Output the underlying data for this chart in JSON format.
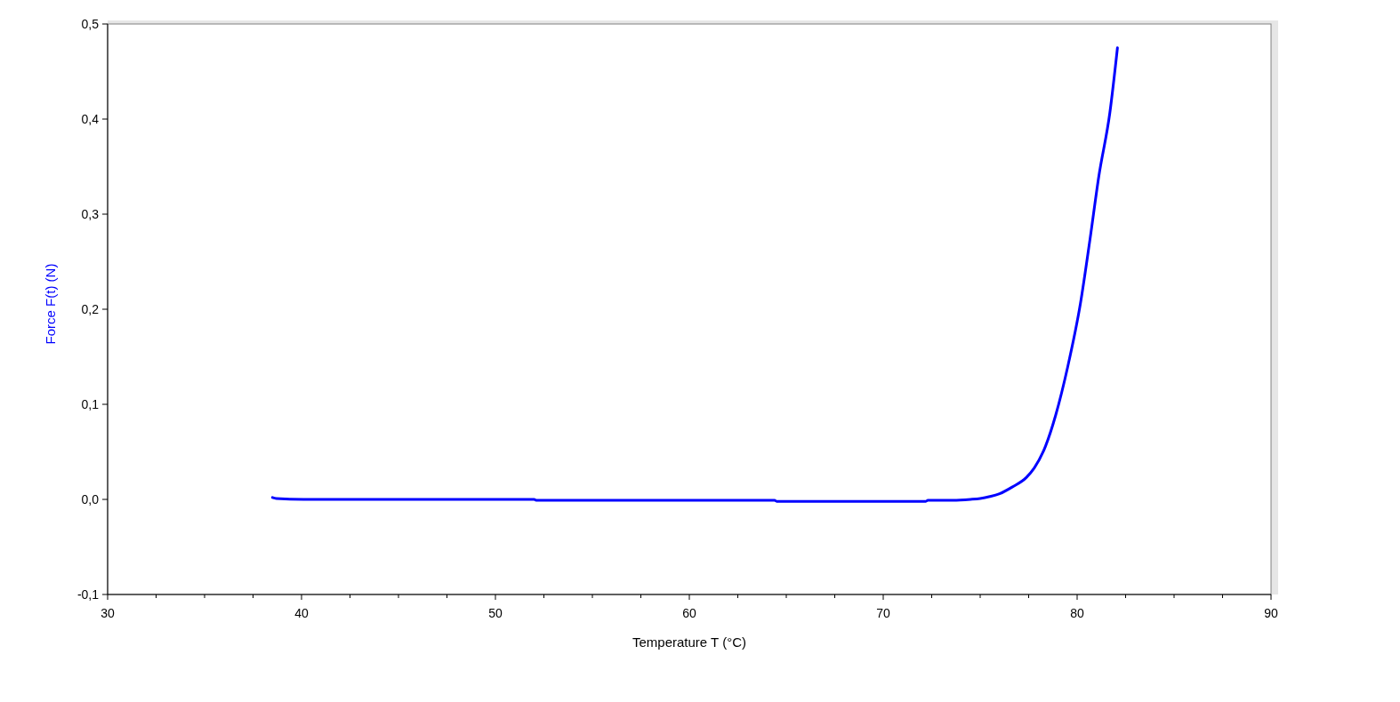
{
  "chart_data": {
    "type": "line",
    "xlabel": "Temperature T (°C)",
    "ylabel": "Force F(t) (N)",
    "xlim": [
      30,
      90
    ],
    "ylim": [
      -0.1,
      0.5
    ],
    "xticks": [
      30,
      {
        "value": 32.5,
        "label": null
      },
      {
        "value": 35,
        "label": null
      },
      {
        "value": 37.5,
        "label": null
      },
      40,
      {
        "value": 42.5,
        "label": null
      },
      {
        "value": 45,
        "label": null
      },
      {
        "value": 47.5,
        "label": null
      },
      50,
      {
        "value": 52.5,
        "label": null
      },
      {
        "value": 55,
        "label": null
      },
      {
        "value": 57.5,
        "label": null
      },
      60,
      {
        "value": 62.5,
        "label": null
      },
      {
        "value": 65,
        "label": null
      },
      {
        "value": 67.5,
        "label": null
      },
      70,
      {
        "value": 72.5,
        "label": null
      },
      {
        "value": 75,
        "label": null
      },
      {
        "value": 77.5,
        "label": null
      },
      80,
      {
        "value": 82.5,
        "label": null
      },
      {
        "value": 85,
        "label": null
      },
      {
        "value": 87.5,
        "label": null
      },
      90
    ],
    "yticks": [
      {
        "value": -0.1,
        "label": "-0,1"
      },
      {
        "value": 0,
        "label": "0,0"
      },
      {
        "value": 0.1,
        "label": "0,1"
      },
      {
        "value": 0.2,
        "label": "0,2"
      },
      {
        "value": 0.3,
        "label": "0,3"
      },
      {
        "value": 0.4,
        "label": "0,4"
      },
      {
        "value": 0.5,
        "label": "0,5"
      }
    ],
    "series": [
      {
        "color": "#0000ff",
        "x": [
          38.5,
          38.7,
          40.1,
          52,
          52.1,
          64.4,
          64.5,
          72.2,
          72.3,
          73.6,
          74.5,
          75,
          75.5,
          76,
          76.65,
          77.38,
          77.79,
          78.37,
          78.9,
          79.51,
          80.17,
          80.66,
          81.12,
          81.69,
          82.08
        ],
        "values": [
          0.002,
          0.001,
          0,
          0,
          -0.001,
          -0.001,
          -0.002,
          -0.002,
          -0.001,
          -0.001,
          0,
          0.001,
          0.003,
          0.006,
          0.013,
          0.023,
          0.033,
          0.056,
          0.089,
          0.139,
          0.206,
          0.273,
          0.34,
          0.407,
          0.475
        ]
      }
    ],
    "marker": "none",
    "line_style": "solid"
  }
}
